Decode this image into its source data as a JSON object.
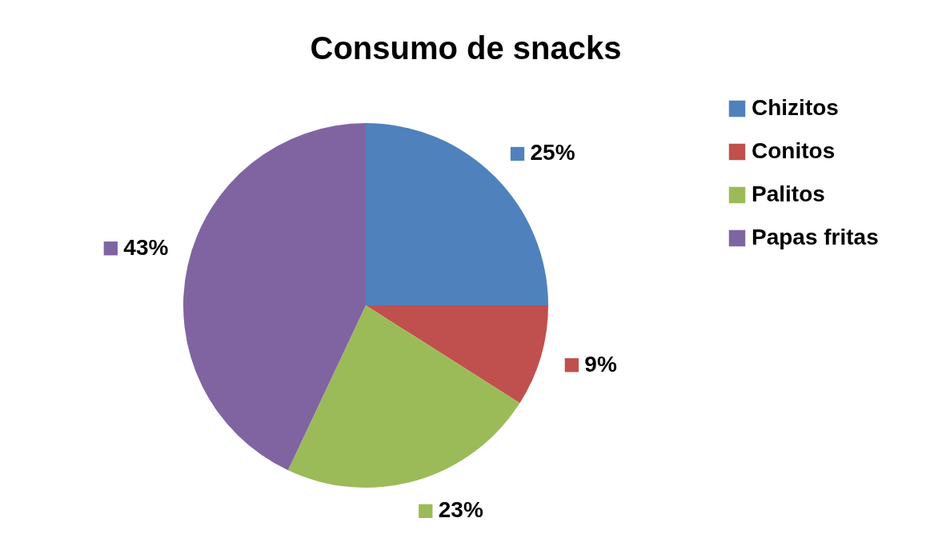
{
  "chart_data": {
    "type": "pie",
    "title": "Consumo de snacks",
    "categories": [
      "Chizitos",
      "Conitos",
      "Palitos",
      "Papas fritas"
    ],
    "values": [
      25,
      9,
      23,
      43
    ],
    "value_labels": [
      "25%",
      "9%",
      "23%",
      "43%"
    ],
    "colors": [
      "#4f81bd",
      "#c0504d",
      "#9bbb59",
      "#8064a2"
    ],
    "legend": "right"
  }
}
